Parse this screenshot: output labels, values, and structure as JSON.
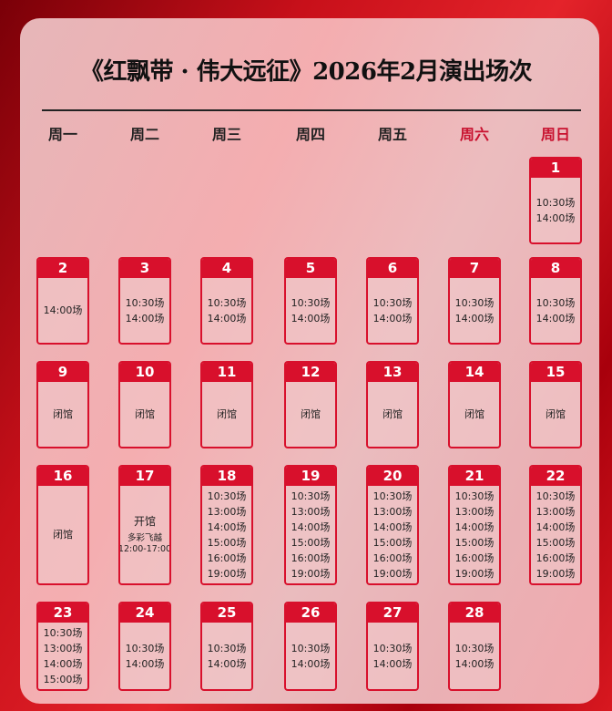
{
  "title": "《红飘带 · 伟大远征》2026年2月演出场次",
  "weekdays": [
    {
      "label": "周一",
      "weekend": false
    },
    {
      "label": "周二",
      "weekend": false
    },
    {
      "label": "周三",
      "weekend": false
    },
    {
      "label": "周四",
      "weekend": false
    },
    {
      "label": "周五",
      "weekend": false
    },
    {
      "label": "周六",
      "weekend": true
    },
    {
      "label": "周日",
      "weekend": true
    }
  ],
  "accent_color": "#d8102c",
  "first_weekday": "周日",
  "days": [
    {
      "day": "1",
      "lines": [
        "10:30场",
        "14:00场"
      ]
    },
    {
      "day": "2",
      "lines": [
        "14:00场"
      ]
    },
    {
      "day": "3",
      "lines": [
        "10:30场",
        "14:00场"
      ]
    },
    {
      "day": "4",
      "lines": [
        "10:30场",
        "14:00场"
      ]
    },
    {
      "day": "5",
      "lines": [
        "10:30场",
        "14:00场"
      ]
    },
    {
      "day": "6",
      "lines": [
        "10:30场",
        "14:00场"
      ]
    },
    {
      "day": "7",
      "lines": [
        "10:30场",
        "14:00场"
      ]
    },
    {
      "day": "8",
      "lines": [
        "10:30场",
        "14:00场"
      ]
    },
    {
      "day": "9",
      "lines": [
        "闭馆"
      ]
    },
    {
      "day": "10",
      "lines": [
        "闭馆"
      ]
    },
    {
      "day": "11",
      "lines": [
        "闭馆"
      ]
    },
    {
      "day": "12",
      "lines": [
        "闭馆"
      ]
    },
    {
      "day": "13",
      "lines": [
        "闭馆"
      ]
    },
    {
      "day": "14",
      "lines": [
        "闭馆"
      ]
    },
    {
      "day": "15",
      "lines": [
        "闭馆"
      ]
    },
    {
      "day": "16",
      "lines": [
        "闭馆"
      ]
    },
    {
      "day": "17",
      "lines": [
        "开馆"
      ],
      "notes": [
        "多彩飞越",
        "12:00-17:00"
      ]
    },
    {
      "day": "18",
      "lines": [
        "10:30场",
        "13:00场",
        "14:00场",
        "15:00场",
        "16:00场",
        "19:00场"
      ]
    },
    {
      "day": "19",
      "lines": [
        "10:30场",
        "13:00场",
        "14:00场",
        "15:00场",
        "16:00场",
        "19:00场"
      ]
    },
    {
      "day": "20",
      "lines": [
        "10:30场",
        "13:00场",
        "14:00场",
        "15:00场",
        "16:00场",
        "19:00场"
      ]
    },
    {
      "day": "21",
      "lines": [
        "10:30场",
        "13:00场",
        "14:00场",
        "15:00场",
        "16:00场",
        "19:00场"
      ]
    },
    {
      "day": "22",
      "lines": [
        "10:30场",
        "13:00场",
        "14:00场",
        "15:00场",
        "16:00场",
        "19:00场"
      ]
    },
    {
      "day": "23",
      "lines": [
        "10:30场",
        "13:00场",
        "14:00场",
        "15:00场"
      ]
    },
    {
      "day": "24",
      "lines": [
        "10:30场",
        "14:00场"
      ]
    },
    {
      "day": "25",
      "lines": [
        "10:30场",
        "14:00场"
      ]
    },
    {
      "day": "26",
      "lines": [
        "10:30场",
        "14:00场"
      ]
    },
    {
      "day": "27",
      "lines": [
        "10:30场",
        "14:00场"
      ]
    },
    {
      "day": "28",
      "lines": [
        "10:30场",
        "14:00场"
      ]
    }
  ]
}
